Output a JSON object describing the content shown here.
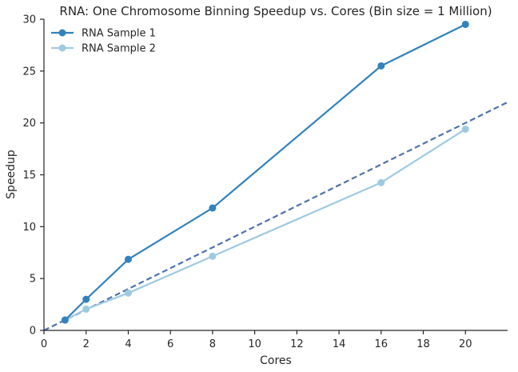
{
  "chart_data": {
    "type": "line",
    "title": "RNA: One Chromosome Binning Speedup vs. Cores (Bin size = 1 Million)",
    "xlabel": "Cores",
    "ylabel": "Speedup",
    "xlim": [
      0,
      22
    ],
    "ylim": [
      0,
      30
    ],
    "xticks": [
      0,
      2,
      4,
      6,
      8,
      10,
      12,
      14,
      16,
      18,
      20
    ],
    "yticks": [
      0,
      5,
      10,
      15,
      20,
      25,
      30
    ],
    "grid": false,
    "legend_position": "top-left",
    "series": [
      {
        "name": "RNA Sample 1",
        "color": "#3182bd",
        "x": [
          1,
          2,
          4,
          8,
          16,
          20
        ],
        "y": [
          1.0,
          3.0,
          6.85,
          11.8,
          25.5,
          29.5
        ]
      },
      {
        "name": "RNA Sample 2",
        "color": "#9ecae1",
        "x": [
          1,
          2,
          4,
          8,
          16,
          20
        ],
        "y": [
          1.0,
          2.05,
          3.6,
          7.15,
          14.25,
          19.4
        ]
      }
    ],
    "reference_line": {
      "style": "dashed",
      "color": "#4c72b0",
      "x": [
        0,
        22
      ],
      "y": [
        0,
        22
      ]
    }
  }
}
